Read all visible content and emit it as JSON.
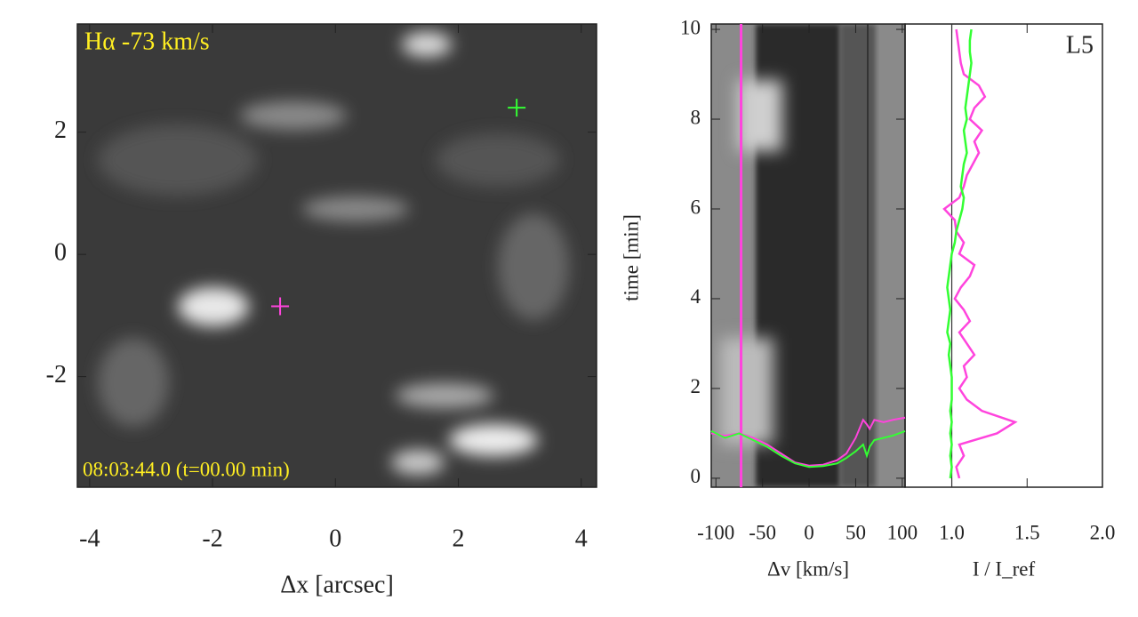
{
  "chart_data": [
    {
      "type": "image",
      "title": "Hα -73 km/s",
      "annotation": "08:03:44.0 (t=00.00 min)",
      "xlabel": "Δx [arcsec]",
      "xlim": [
        -4.2,
        4.25
      ],
      "ylim": [
        -3.81,
        3.77
      ],
      "xticks": [
        -4,
        -2,
        0,
        2,
        4
      ],
      "yticks": [
        -2,
        0,
        2
      ],
      "points": [
        {
          "color": "#ff44dd",
          "x": -0.9,
          "y": -0.85
        },
        {
          "color": "#33ff33",
          "x": 2.95,
          "y": 2.4
        }
      ]
    },
    {
      "type": "heatmap",
      "xlabel": "Δv [km/s]",
      "ylabel": "time [min]",
      "xlim": [
        -105,
        103
      ],
      "ylim": [
        -0.2,
        10.12
      ],
      "xticks": [
        -100,
        -50,
        0,
        50,
        100
      ],
      "yticks": [
        0,
        2,
        4,
        6,
        8,
        10
      ],
      "marker_x": -73,
      "marker_color": "#ff44dd",
      "x": [
        -105,
        -90,
        -75,
        -60,
        -45,
        -30,
        -15,
        0,
        15,
        30,
        40,
        50,
        58,
        62,
        65,
        70,
        80,
        90,
        103
      ],
      "series": [
        {
          "color": "#ff44dd",
          "values": [
            1.0,
            0.95,
            1.0,
            0.9,
            0.75,
            0.55,
            0.35,
            0.28,
            0.3,
            0.4,
            0.55,
            0.9,
            1.3,
            1.2,
            1.1,
            1.3,
            1.25,
            1.3,
            1.35
          ]
        },
        {
          "color": "#33ff33",
          "values": [
            1.05,
            0.9,
            1.0,
            0.85,
            0.7,
            0.5,
            0.33,
            0.25,
            0.27,
            0.33,
            0.45,
            0.6,
            0.75,
            0.5,
            0.7,
            0.85,
            0.9,
            0.95,
            1.05
          ]
        }
      ]
    },
    {
      "type": "line",
      "annotation": "L5",
      "xlabel": "I / I_ref",
      "xlim": [
        0.69,
        2.0
      ],
      "ylim": [
        -0.2,
        10.12
      ],
      "xticks": [
        {
          "value": 1,
          "label": "1.0"
        },
        {
          "value": 1.5,
          "label": "1.5"
        },
        {
          "value": 2,
          "label": "2.0"
        }
      ],
      "reference": 1.0,
      "y": [
        0,
        0.25,
        0.5,
        0.75,
        1,
        1.25,
        1.5,
        1.75,
        2,
        2.25,
        2.5,
        2.75,
        3,
        3.25,
        3.5,
        3.75,
        4,
        4.25,
        4.5,
        4.75,
        5,
        5.25,
        5.5,
        5.75,
        6,
        6.25,
        6.5,
        6.75,
        7,
        7.25,
        7.5,
        7.75,
        8,
        8.25,
        8.5,
        8.75,
        9,
        9.25,
        9.5,
        9.75,
        10
      ],
      "series": [
        {
          "color": "#ff44dd",
          "values": [
            1.05,
            1.03,
            1.08,
            1.05,
            1.3,
            1.42,
            1.2,
            1.1,
            1.05,
            1.1,
            1.08,
            1.15,
            1.1,
            1.05,
            1.12,
            1.08,
            1.02,
            1.06,
            1.12,
            1.15,
            1.05,
            1.08,
            1.03,
            1.02,
            0.95,
            1.05,
            1.08,
            1.1,
            1.14,
            1.18,
            1.15,
            1.2,
            1.12,
            1.15,
            1.22,
            1.18,
            1.08,
            1.06,
            1.05,
            1.04,
            1.03
          ]
        },
        {
          "color": "#33ff33",
          "values": [
            0.99,
            1.0,
            0.99,
            1.0,
            0.99,
            1.0,
            0.99,
            1.0,
            1.0,
            1.0,
            0.99,
            0.98,
            0.99,
            0.97,
            0.98,
            0.99,
            0.98,
            0.97,
            0.98,
            0.99,
            1.0,
            1.02,
            1.03,
            1.05,
            1.07,
            1.08,
            1.06,
            1.07,
            1.08,
            1.1,
            1.09,
            1.08,
            1.1,
            1.09,
            1.1,
            1.11,
            1.12,
            1.13,
            1.12,
            1.12,
            1.13
          ]
        }
      ]
    }
  ]
}
